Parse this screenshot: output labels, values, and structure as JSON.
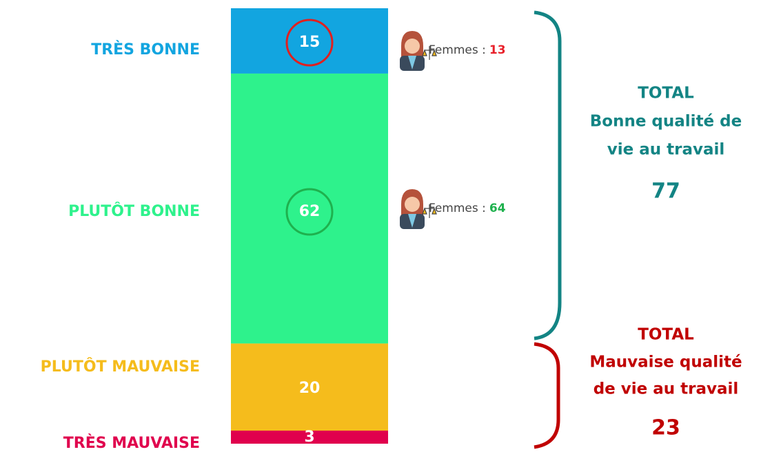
{
  "chart_data": {
    "type": "stacked-bar",
    "categories": [
      "TRÈS BONNE",
      "PLUTÔT BONNE",
      "PLUTÔT MAUVAISE",
      "TRÈS MAUVAISE"
    ],
    "values": [
      15,
      62,
      20,
      3
    ],
    "colors": [
      "#12a5e0",
      "#2ef28c",
      "#f5bc1c",
      "#e0004d"
    ],
    "women": [
      {
        "label": "Femmes :",
        "value": 13,
        "color": "#e8202a"
      },
      {
        "label": "Femmes :",
        "value": 64,
        "color": "#1fb14e"
      }
    ],
    "totals": [
      {
        "title": "TOTAL",
        "lines": [
          "Bonne qualité de",
          "vie au travail"
        ],
        "value": 77,
        "color": "#138484"
      },
      {
        "title": "TOTAL",
        "lines": [
          "Mauvaise qualité",
          "de vie au travail"
        ],
        "value": 23,
        "color": "#c00000"
      }
    ]
  }
}
